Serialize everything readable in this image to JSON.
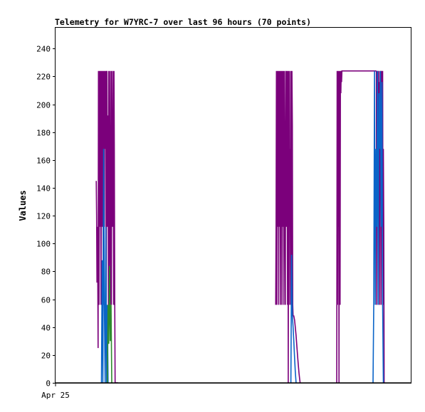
{
  "chart_data": {
    "type": "line",
    "title": "Telemetry for W7YRC-7 over last 96 hours (70 points)",
    "xlabel": "",
    "ylabel": "Values",
    "x_tick_labels": [
      "Apr 25"
    ],
    "ylim": [
      0,
      255
    ],
    "y_ticks": [
      0,
      20,
      40,
      60,
      80,
      100,
      120,
      140,
      160,
      180,
      200,
      220,
      240
    ],
    "xlim": [
      0,
      96
    ],
    "grid": false,
    "legend": "none",
    "colors": {
      "purple": "#7b007b",
      "blue": "#0a64c8",
      "green": "#2e8b2e",
      "black": "#000000",
      "frame": "#000000"
    },
    "series": [
      {
        "color": "purple",
        "x": [
          11.0,
          11.1,
          11.2,
          11.35,
          11.5,
          11.6,
          11.75,
          11.9,
          12.0,
          12.1,
          12.2,
          12.3,
          12.4,
          12.5,
          12.6,
          12.7,
          12.8,
          12.9,
          13.0,
          13.1,
          13.2,
          13.3,
          13.4,
          13.5,
          13.6,
          13.7,
          13.8,
          13.9,
          14.0,
          14.1,
          14.2,
          14.3,
          14.4,
          14.5,
          14.6,
          14.7,
          14.8,
          14.9,
          15.0,
          15.1,
          15.2,
          15.3,
          15.4,
          15.5,
          15.6,
          15.7,
          15.8,
          15.9,
          16.0,
          16.1,
          16.2,
          16.3,
          16.4,
          16.5,
          16.6,
          16.7,
          16.8,
          16.9
        ],
        "values": [
          145,
          120,
          72,
          112,
          25,
          224,
          56,
          224,
          112,
          168,
          224,
          56,
          192,
          224,
          112,
          168,
          224,
          56,
          224,
          192,
          112,
          224,
          200,
          168,
          224,
          56,
          208,
          224,
          112,
          168,
          192,
          56,
          224,
          72,
          224,
          168,
          112,
          56,
          224,
          56,
          224,
          168,
          112,
          168,
          224,
          56,
          224,
          168,
          56,
          0,
          0,
          0,
          0,
          0,
          0,
          0,
          0,
          0
        ]
      },
      {
        "color": "purple",
        "x": [
          59.5,
          59.6,
          59.7,
          59.8,
          59.9,
          60.0,
          60.1,
          60.2,
          60.3,
          60.4,
          60.5,
          60.6,
          60.7,
          60.8,
          60.9,
          61.0,
          61.1,
          61.2,
          61.3,
          61.4,
          61.5,
          61.6,
          61.7,
          61.8,
          61.9,
          62.0,
          62.1,
          62.2,
          62.3,
          62.4,
          62.5,
          62.6,
          62.7,
          62.8,
          62.9,
          63.0,
          63.1,
          63.2,
          63.3,
          63.4,
          63.5,
          63.6,
          63.7,
          63.8,
          63.9,
          64.0,
          64.1,
          64.2
        ],
        "values": [
          56,
          112,
          224,
          56,
          224,
          112,
          168,
          224,
          56,
          224,
          112,
          224,
          168,
          56,
          224,
          112,
          224,
          56,
          168,
          224,
          112,
          224,
          56,
          224,
          168,
          112,
          56,
          224,
          208,
          112,
          224,
          168,
          56,
          224,
          0,
          224,
          56,
          224,
          112,
          168,
          56,
          224,
          112,
          56,
          224,
          184,
          56,
          48
        ]
      },
      {
        "color": "purple",
        "x": [
          64.2,
          64.4,
          64.6,
          64.8,
          65.0,
          65.2,
          65.4,
          65.6,
          65.8,
          66.0,
          66.1
        ],
        "values": [
          48,
          48,
          45,
          40,
          34,
          27,
          20,
          13,
          7,
          2,
          0
        ]
      },
      {
        "color": "purple",
        "x": [
          76.0,
          76.1,
          76.2,
          76.3,
          76.4,
          76.5,
          76.6,
          76.7,
          76.8,
          76.9,
          77.0,
          77.1,
          77.2,
          77.3,
          77.4,
          77.6,
          77.8,
          78.0,
          78.5,
          79.0,
          80.0,
          82.0,
          84.0,
          85.5,
          86.0,
          86.2,
          86.5,
          86.7
        ],
        "values": [
          0,
          224,
          56,
          224,
          112,
          224,
          0,
          224,
          168,
          56,
          224,
          208,
          224,
          216,
          224,
          224,
          224,
          224,
          224,
          224,
          224,
          224,
          224,
          224,
          224,
          224,
          224,
          224
        ]
      },
      {
        "color": "purple",
        "x": [
          86.7,
          86.8,
          86.9,
          87.0,
          87.1,
          87.2,
          87.3,
          87.4,
          87.5,
          87.6,
          87.7,
          87.8,
          87.9,
          88.0,
          88.1,
          88.2,
          88.3,
          88.4,
          88.5,
          88.6,
          88.7,
          88.8
        ],
        "values": [
          224,
          56,
          216,
          224,
          168,
          208,
          224,
          112,
          216,
          56,
          224,
          168,
          224,
          56,
          208,
          224,
          112,
          224,
          56,
          168,
          112,
          0
        ]
      },
      {
        "color": "blue",
        "x": [
          12.4,
          12.6,
          12.8,
          13.0,
          13.2,
          13.4,
          13.6,
          13.8,
          14.0,
          14.2
        ],
        "values": [
          0,
          88,
          0,
          168,
          56,
          0,
          112,
          0,
          56,
          0
        ]
      },
      {
        "color": "blue",
        "x": [
          63.6,
          63.8,
          64.0,
          64.2,
          64.4,
          64.6,
          64.8,
          65.0
        ],
        "values": [
          0,
          92,
          48,
          40,
          30,
          18,
          8,
          0
        ]
      },
      {
        "color": "blue",
        "x": [
          85.8,
          86.0,
          86.2,
          86.4,
          86.6,
          86.8,
          87.0,
          87.2,
          87.4,
          87.6,
          87.8,
          88.0,
          88.2,
          88.4,
          88.6
        ],
        "values": [
          0,
          56,
          224,
          56,
          168,
          112,
          224,
          56,
          208,
          168,
          224,
          112,
          216,
          56,
          0
        ]
      },
      {
        "color": "green",
        "x": [
          14.0,
          14.2,
          14.4,
          14.6,
          14.8,
          15.0,
          15.2,
          15.4
        ],
        "values": [
          0,
          56,
          28,
          84,
          30,
          56,
          0,
          0
        ]
      },
      {
        "color": "black",
        "x": [
          0,
          96
        ],
        "values": [
          0,
          0
        ]
      }
    ]
  }
}
